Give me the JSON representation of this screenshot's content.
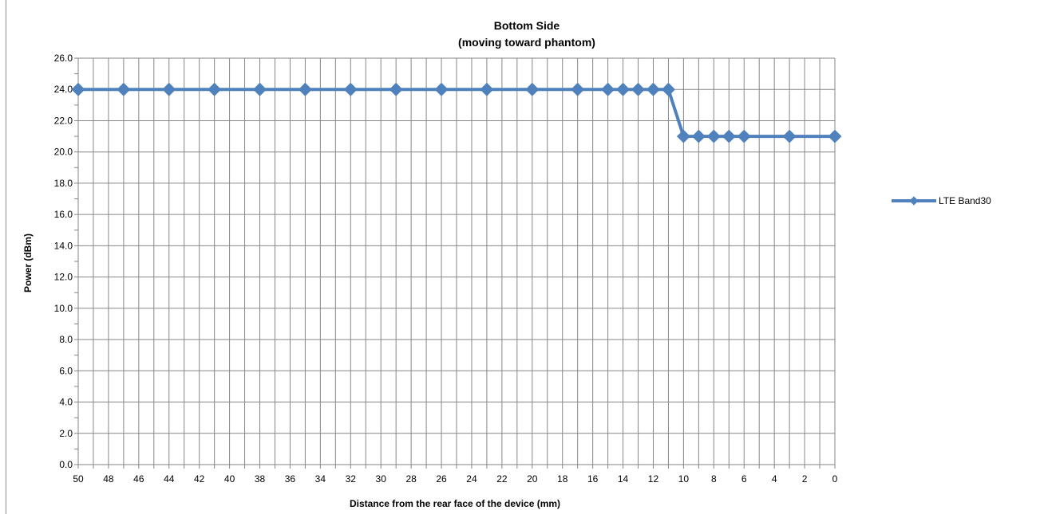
{
  "chart_data": {
    "type": "line",
    "title": "Bottom Side",
    "subtitle": "(moving toward phantom)",
    "xlabel": "Distance from the rear face of the device (mm)",
    "ylabel": "Power (dBm)",
    "xlim": [
      50,
      0
    ],
    "x_reversed": true,
    "ylim": [
      0,
      26
    ],
    "y_major_step": 2,
    "y_tick_labels": [
      "0.0",
      "2.0",
      "4.0",
      "6.0",
      "8.0",
      "10.0",
      "12.0",
      "14.0",
      "16.0",
      "18.0",
      "20.0",
      "22.0",
      "24.0",
      "26.0"
    ],
    "x_tick_labels": [
      "50",
      "48",
      "46",
      "44",
      "42",
      "40",
      "38",
      "36",
      "34",
      "32",
      "30",
      "28",
      "26",
      "24",
      "22",
      "20",
      "18",
      "16",
      "14",
      "12",
      "10",
      "8",
      "6",
      "4",
      "2",
      "0"
    ],
    "grid": true,
    "legend_position": "right",
    "series": [
      {
        "name": "LTE Band30",
        "color": "#4f81bd",
        "marker": "diamond",
        "x": [
          50,
          47,
          44,
          41,
          38,
          35,
          32,
          29,
          26,
          23,
          20,
          17,
          15,
          14,
          13,
          12,
          11,
          10,
          9,
          8,
          7,
          6,
          3,
          0
        ],
        "y": [
          24,
          24,
          24,
          24,
          24,
          24,
          24,
          24,
          24,
          24,
          24,
          24,
          24,
          24,
          24,
          24,
          24,
          21,
          21,
          21,
          21,
          21,
          21,
          21
        ]
      }
    ]
  }
}
